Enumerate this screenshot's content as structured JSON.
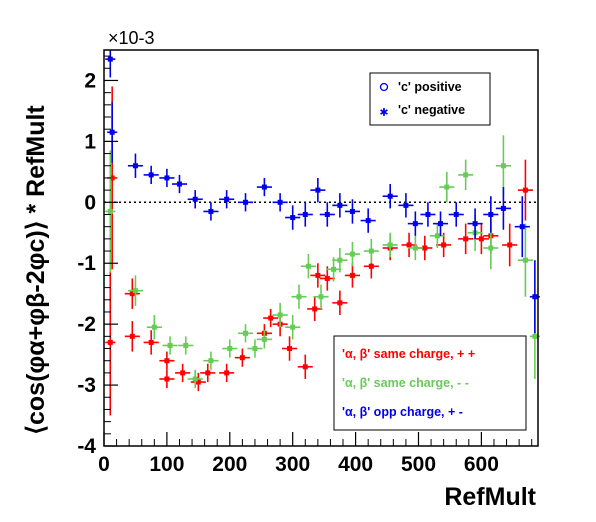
{
  "chart_data": {
    "type": "scatter",
    "title": "",
    "xlabel": "RefMult",
    "ylabel": "⟨cos(φα+φβ-2φc)⟩ * RefMult",
    "y_multiplier": "×10-3",
    "xlim": [
      0,
      690
    ],
    "ylim": [
      -4,
      2.5
    ],
    "xticks": [
      "0",
      "100",
      "200",
      "300",
      "400",
      "500",
      "600"
    ],
    "yticks": [
      "-4",
      "-3",
      "-2",
      "-1",
      "0",
      "1",
      "2"
    ],
    "zero_line": "dotted",
    "legend_top": {
      "placement": "top-right",
      "entries": [
        {
          "label": "'c' positive",
          "marker": "open-circle"
        },
        {
          "label": "'c' negative",
          "marker": "filled-star"
        }
      ]
    },
    "legend_bottom": {
      "placement": "bottom-right",
      "entries": [
        {
          "label": "'α, β'  same charge, + +",
          "color": "#ff0000"
        },
        {
          "label": "'α, β'  same charge, - -",
          "color": "#66cc55"
        },
        {
          "label": "'α, β'  opp charge, + -",
          "color": "#0000ee"
        }
      ]
    },
    "series": [
      {
        "name": "'α, β'  same charge, + +",
        "color": "#ff0000",
        "points": [
          {
            "x": 10,
            "y": -2.3,
            "xerr": 8,
            "yerr": 1.2
          },
          {
            "x": 13,
            "y": 0.4,
            "xerr": 8,
            "yerr": 1.5
          },
          {
            "x": 45,
            "y": -2.2,
            "xerr": 12,
            "yerr": 0.25
          },
          {
            "x": 45,
            "y": -1.5,
            "xerr": 12,
            "yerr": 0.25
          },
          {
            "x": 75,
            "y": -2.3,
            "xerr": 12,
            "yerr": 0.2
          },
          {
            "x": 100,
            "y": -2.9,
            "xerr": 12,
            "yerr": 0.15
          },
          {
            "x": 100,
            "y": -2.6,
            "xerr": 12,
            "yerr": 0.15
          },
          {
            "x": 125,
            "y": -2.8,
            "xerr": 12,
            "yerr": 0.15
          },
          {
            "x": 150,
            "y": -2.95,
            "xerr": 12,
            "yerr": 0.15
          },
          {
            "x": 165,
            "y": -2.8,
            "xerr": 12,
            "yerr": 0.15
          },
          {
            "x": 195,
            "y": -2.8,
            "xerr": 12,
            "yerr": 0.15
          },
          {
            "x": 220,
            "y": -2.55,
            "xerr": 12,
            "yerr": 0.15
          },
          {
            "x": 255,
            "y": -2.15,
            "xerr": 12,
            "yerr": 0.15
          },
          {
            "x": 265,
            "y": -1.9,
            "xerr": 12,
            "yerr": 0.15
          },
          {
            "x": 280,
            "y": -2.0,
            "xerr": 12,
            "yerr": 0.2
          },
          {
            "x": 295,
            "y": -2.4,
            "xerr": 12,
            "yerr": 0.2
          },
          {
            "x": 320,
            "y": -2.7,
            "xerr": 12,
            "yerr": 0.2
          },
          {
            "x": 335,
            "y": -1.75,
            "xerr": 12,
            "yerr": 0.2
          },
          {
            "x": 340,
            "y": -1.2,
            "xerr": 12,
            "yerr": 0.2
          },
          {
            "x": 355,
            "y": -1.25,
            "xerr": 12,
            "yerr": 0.2
          },
          {
            "x": 375,
            "y": -1.65,
            "xerr": 12,
            "yerr": 0.2
          },
          {
            "x": 395,
            "y": -1.2,
            "xerr": 12,
            "yerr": 0.2
          },
          {
            "x": 425,
            "y": -1.05,
            "xerr": 12,
            "yerr": 0.2
          },
          {
            "x": 455,
            "y": -0.75,
            "xerr": 12,
            "yerr": 0.2
          },
          {
            "x": 485,
            "y": -0.7,
            "xerr": 12,
            "yerr": 0.2
          },
          {
            "x": 510,
            "y": -0.75,
            "xerr": 12,
            "yerr": 0.2
          },
          {
            "x": 540,
            "y": -0.7,
            "xerr": 12,
            "yerr": 0.2
          },
          {
            "x": 575,
            "y": -0.6,
            "xerr": 12,
            "yerr": 0.25
          },
          {
            "x": 600,
            "y": -0.6,
            "xerr": 12,
            "yerr": 0.25
          },
          {
            "x": 615,
            "y": -0.55,
            "xerr": 12,
            "yerr": 0.3
          },
          {
            "x": 645,
            "y": -0.7,
            "xerr": 12,
            "yerr": 0.35
          },
          {
            "x": 670,
            "y": 0.2,
            "xerr": 12,
            "yerr": 0.5
          }
        ]
      },
      {
        "name": "'α, β'  same charge, - -",
        "color": "#66cc55",
        "points": [
          {
            "x": 10,
            "y": -0.15,
            "xerr": 8,
            "yerr": 1.0
          },
          {
            "x": 50,
            "y": -1.45,
            "xerr": 12,
            "yerr": 0.25
          },
          {
            "x": 80,
            "y": -2.05,
            "xerr": 12,
            "yerr": 0.2
          },
          {
            "x": 105,
            "y": -2.35,
            "xerr": 12,
            "yerr": 0.15
          },
          {
            "x": 130,
            "y": -2.35,
            "xerr": 12,
            "yerr": 0.15
          },
          {
            "x": 145,
            "y": -2.9,
            "xerr": 12,
            "yerr": 0.15
          },
          {
            "x": 170,
            "y": -2.6,
            "xerr": 12,
            "yerr": 0.15
          },
          {
            "x": 200,
            "y": -2.4,
            "xerr": 12,
            "yerr": 0.15
          },
          {
            "x": 225,
            "y": -2.15,
            "xerr": 12,
            "yerr": 0.15
          },
          {
            "x": 240,
            "y": -2.4,
            "xerr": 12,
            "yerr": 0.15
          },
          {
            "x": 255,
            "y": -2.25,
            "xerr": 12,
            "yerr": 0.15
          },
          {
            "x": 280,
            "y": -1.85,
            "xerr": 12,
            "yerr": 0.2
          },
          {
            "x": 300,
            "y": -2.05,
            "xerr": 12,
            "yerr": 0.2
          },
          {
            "x": 310,
            "y": -1.55,
            "xerr": 12,
            "yerr": 0.2
          },
          {
            "x": 325,
            "y": -1.05,
            "xerr": 12,
            "yerr": 0.2
          },
          {
            "x": 345,
            "y": -1.55,
            "xerr": 12,
            "yerr": 0.2
          },
          {
            "x": 365,
            "y": -1.1,
            "xerr": 12,
            "yerr": 0.2
          },
          {
            "x": 375,
            "y": -0.95,
            "xerr": 12,
            "yerr": 0.2
          },
          {
            "x": 395,
            "y": -0.85,
            "xerr": 12,
            "yerr": 0.2
          },
          {
            "x": 425,
            "y": -0.8,
            "xerr": 12,
            "yerr": 0.2
          },
          {
            "x": 455,
            "y": -0.7,
            "xerr": 12,
            "yerr": 0.2
          },
          {
            "x": 495,
            "y": -0.75,
            "xerr": 12,
            "yerr": 0.2
          },
          {
            "x": 530,
            "y": -0.55,
            "xerr": 12,
            "yerr": 0.2
          },
          {
            "x": 545,
            "y": 0.25,
            "xerr": 12,
            "yerr": 0.25
          },
          {
            "x": 575,
            "y": 0.45,
            "xerr": 12,
            "yerr": 0.25
          },
          {
            "x": 590,
            "y": -0.5,
            "xerr": 12,
            "yerr": 0.3
          },
          {
            "x": 615,
            "y": -0.75,
            "xerr": 12,
            "yerr": 0.35
          },
          {
            "x": 635,
            "y": 0.6,
            "xerr": 12,
            "yerr": 0.5
          },
          {
            "x": 670,
            "y": -0.95,
            "xerr": 12,
            "yerr": 0.6
          },
          {
            "x": 685,
            "y": -2.2,
            "xerr": 8,
            "yerr": 0.7
          }
        ]
      },
      {
        "name": "'α, β'  opp charge, + -",
        "color": "#0000ee",
        "points": [
          {
            "x": 10,
            "y": 2.35,
            "xerr": 8,
            "yerr": 0.3
          },
          {
            "x": 13,
            "y": 1.15,
            "xerr": 8,
            "yerr": 0.5
          },
          {
            "x": 50,
            "y": 0.6,
            "xerr": 12,
            "yerr": 0.2
          },
          {
            "x": 75,
            "y": 0.45,
            "xerr": 12,
            "yerr": 0.15
          },
          {
            "x": 100,
            "y": 0.4,
            "xerr": 12,
            "yerr": 0.15
          },
          {
            "x": 120,
            "y": 0.3,
            "xerr": 12,
            "yerr": 0.15
          },
          {
            "x": 145,
            "y": 0.05,
            "xerr": 12,
            "yerr": 0.15
          },
          {
            "x": 170,
            "y": -0.15,
            "xerr": 12,
            "yerr": 0.15
          },
          {
            "x": 195,
            "y": 0.05,
            "xerr": 12,
            "yerr": 0.15
          },
          {
            "x": 225,
            "y": 0.0,
            "xerr": 12,
            "yerr": 0.15
          },
          {
            "x": 255,
            "y": 0.25,
            "xerr": 12,
            "yerr": 0.15
          },
          {
            "x": 280,
            "y": 0.0,
            "xerr": 12,
            "yerr": 0.15
          },
          {
            "x": 300,
            "y": -0.25,
            "xerr": 12,
            "yerr": 0.2
          },
          {
            "x": 320,
            "y": -0.2,
            "xerr": 12,
            "yerr": 0.2
          },
          {
            "x": 340,
            "y": 0.2,
            "xerr": 12,
            "yerr": 0.2
          },
          {
            "x": 355,
            "y": -0.2,
            "xerr": 12,
            "yerr": 0.2
          },
          {
            "x": 375,
            "y": -0.05,
            "xerr": 12,
            "yerr": 0.2
          },
          {
            "x": 395,
            "y": -0.15,
            "xerr": 12,
            "yerr": 0.2
          },
          {
            "x": 420,
            "y": -0.3,
            "xerr": 12,
            "yerr": 0.2
          },
          {
            "x": 455,
            "y": 0.1,
            "xerr": 12,
            "yerr": 0.2
          },
          {
            "x": 480,
            "y": -0.05,
            "xerr": 12,
            "yerr": 0.2
          },
          {
            "x": 495,
            "y": -0.35,
            "xerr": 12,
            "yerr": 0.2
          },
          {
            "x": 515,
            "y": -0.2,
            "xerr": 12,
            "yerr": 0.2
          },
          {
            "x": 535,
            "y": -0.35,
            "xerr": 12,
            "yerr": 0.2
          },
          {
            "x": 560,
            "y": -0.2,
            "xerr": 12,
            "yerr": 0.2
          },
          {
            "x": 590,
            "y": -0.35,
            "xerr": 12,
            "yerr": 0.25
          },
          {
            "x": 615,
            "y": -0.2,
            "xerr": 12,
            "yerr": 0.3
          },
          {
            "x": 635,
            "y": -0.1,
            "xerr": 12,
            "yerr": 0.35
          },
          {
            "x": 665,
            "y": -0.4,
            "xerr": 12,
            "yerr": 0.5
          },
          {
            "x": 685,
            "y": -1.55,
            "xerr": 8,
            "yerr": 0.6
          }
        ]
      }
    ]
  }
}
